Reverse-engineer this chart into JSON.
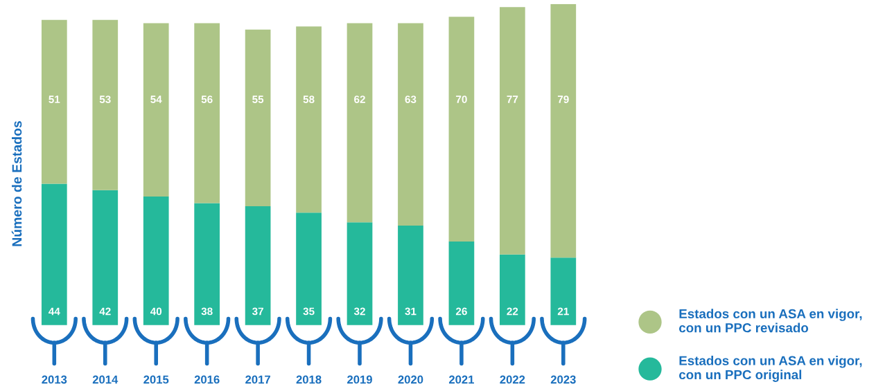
{
  "chart_data": {
    "type": "bar",
    "stacked": true,
    "ylabel": "Número de Estados",
    "categories": [
      "2013",
      "2014",
      "2015",
      "2016",
      "2017",
      "2018",
      "2019",
      "2020",
      "2021",
      "2022",
      "2023"
    ],
    "series": [
      {
        "name": "Estados con un ASA en vigor, con un PPC original",
        "color": "#25b99b",
        "values": [
          44,
          42,
          40,
          38,
          37,
          35,
          32,
          31,
          26,
          22,
          21
        ]
      },
      {
        "name": "Estados con un ASA en vigor, con un PPC revisado",
        "color": "#adc587",
        "values": [
          51,
          53,
          54,
          56,
          55,
          58,
          62,
          63,
          70,
          77,
          79
        ]
      }
    ],
    "data_labels": true,
    "legend": "bottom right",
    "grid": false
  }
}
